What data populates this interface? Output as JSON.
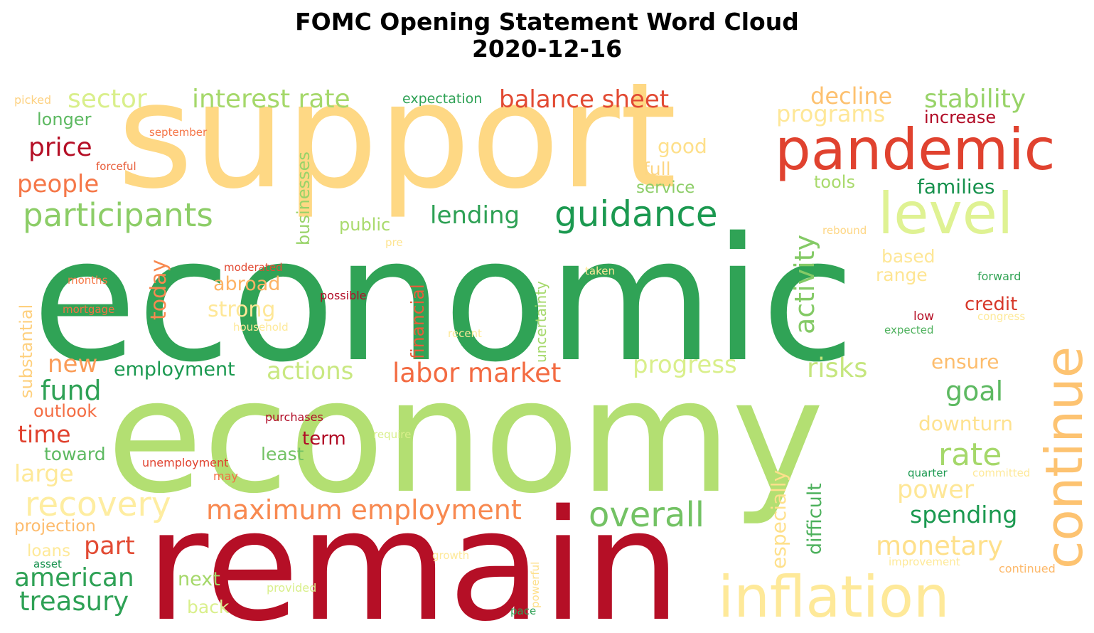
{
  "title_line1": "FOMC Opening Statement Word Cloud",
  "title_line2": "2020-12-16",
  "words": [
    {
      "text": "support",
      "color": "#fed884"
    },
    {
      "text": "economic",
      "color": "#30a356"
    },
    {
      "text": "economy",
      "color": "#b3df72"
    },
    {
      "text": "remain",
      "color": "#b50f26"
    },
    {
      "text": "pandemic",
      "color": "#e0422f"
    },
    {
      "text": "level",
      "color": "#dff293"
    },
    {
      "text": "inflation",
      "color": "#fee999"
    },
    {
      "text": "continue",
      "color": "#fdc371"
    },
    {
      "text": "participants",
      "color": "#8ccd67"
    },
    {
      "text": "guidance",
      "color": "#1b9950"
    },
    {
      "text": "interest rate",
      "color": "#a5d86a"
    },
    {
      "text": "sector",
      "color": "#d9ef8b"
    },
    {
      "text": "balance sheet",
      "color": "#e24a33"
    },
    {
      "text": "stability",
      "color": "#98d368"
    },
    {
      "text": "decline",
      "color": "#fdc170"
    },
    {
      "text": "programs",
      "color": "#fee797"
    },
    {
      "text": "increase",
      "color": "#b10b26"
    },
    {
      "text": "expectation",
      "color": "#2ea155"
    },
    {
      "text": "picked",
      "color": "#fdd181"
    },
    {
      "text": "longer",
      "color": "#5db961"
    },
    {
      "text": "september",
      "color": "#f57547"
    },
    {
      "text": "price",
      "color": "#b50f26"
    },
    {
      "text": "forceful",
      "color": "#e85d3a"
    },
    {
      "text": "people",
      "color": "#f57748"
    },
    {
      "text": "good",
      "color": "#fee08b"
    },
    {
      "text": "full",
      "color": "#fdd683"
    },
    {
      "text": "service",
      "color": "#8ccd67"
    },
    {
      "text": "tools",
      "color": "#a9da6c"
    },
    {
      "text": "families",
      "color": "#16914d"
    },
    {
      "text": "businesses",
      "color": "#98d368"
    },
    {
      "text": "lending",
      "color": "#2ea155"
    },
    {
      "text": "public",
      "color": "#a9da6c"
    },
    {
      "text": "activity",
      "color": "#84ca66"
    },
    {
      "text": "rebound",
      "color": "#fed683"
    },
    {
      "text": "pre",
      "color": "#fee491"
    },
    {
      "text": "based",
      "color": "#fee797"
    },
    {
      "text": "range",
      "color": "#fee593"
    },
    {
      "text": "forward",
      "color": "#33a456"
    },
    {
      "text": "substantial",
      "color": "#fed07e"
    },
    {
      "text": "today",
      "color": "#f88950"
    },
    {
      "text": "moderated",
      "color": "#e24a33"
    },
    {
      "text": "months",
      "color": "#f67a49"
    },
    {
      "text": "abroad",
      "color": "#fdb365"
    },
    {
      "text": "possible",
      "color": "#b10b26"
    },
    {
      "text": "mortgage",
      "color": "#f47044"
    },
    {
      "text": "strong",
      "color": "#fee797"
    },
    {
      "text": "household",
      "color": "#fee999"
    },
    {
      "text": "financial",
      "color": "#e85d3a"
    },
    {
      "text": "uncertainty",
      "color": "#a5d86a"
    },
    {
      "text": "taken",
      "color": "#fee999"
    },
    {
      "text": "recent",
      "color": "#fee999"
    },
    {
      "text": "credit",
      "color": "#d7382a"
    },
    {
      "text": "low",
      "color": "#b50f26"
    },
    {
      "text": "congress",
      "color": "#fee999"
    },
    {
      "text": "expected",
      "color": "#4eb15d"
    },
    {
      "text": "new",
      "color": "#fa9c58"
    },
    {
      "text": "employment",
      "color": "#1b9950"
    },
    {
      "text": "actions",
      "color": "#c9e881"
    },
    {
      "text": "labor market",
      "color": "#f36b42"
    },
    {
      "text": "progress",
      "color": "#d9ef8b"
    },
    {
      "text": "risks",
      "color": "#c5e67e"
    },
    {
      "text": "ensure",
      "color": "#fdbd6d"
    },
    {
      "text": "fund",
      "color": "#2ea155"
    },
    {
      "text": "goal",
      "color": "#5db961"
    },
    {
      "text": "outlook",
      "color": "#f46d43"
    },
    {
      "text": "purchases",
      "color": "#b10b26"
    },
    {
      "text": "time",
      "color": "#e0422f"
    },
    {
      "text": "term",
      "color": "#b10b26"
    },
    {
      "text": "require",
      "color": "#d9ef8b"
    },
    {
      "text": "downturn",
      "color": "#fee28f"
    },
    {
      "text": "toward",
      "color": "#5db961"
    },
    {
      "text": "least",
      "color": "#73c264"
    },
    {
      "text": "rate",
      "color": "#a5d86a"
    },
    {
      "text": "large",
      "color": "#fee999"
    },
    {
      "text": "unemployment",
      "color": "#e0422f"
    },
    {
      "text": "may",
      "color": "#f46d43"
    },
    {
      "text": "especially",
      "color": "#fee08b"
    },
    {
      "text": "quarter",
      "color": "#1b9950"
    },
    {
      "text": "committed",
      "color": "#fee999"
    },
    {
      "text": "recovery",
      "color": "#feeda1"
    },
    {
      "text": "maximum employment",
      "color": "#f88950"
    },
    {
      "text": "overall",
      "color": "#73c264"
    },
    {
      "text": "power",
      "color": "#fee797"
    },
    {
      "text": "spending",
      "color": "#1b9950"
    },
    {
      "text": "projection",
      "color": "#fdbb6c"
    },
    {
      "text": "difficult",
      "color": "#4eb15d"
    },
    {
      "text": "part",
      "color": "#e24a33"
    },
    {
      "text": "monetary",
      "color": "#fee08b"
    },
    {
      "text": "loans",
      "color": "#fee999"
    },
    {
      "text": "growth",
      "color": "#fee999"
    },
    {
      "text": "asset",
      "color": "#16914d"
    },
    {
      "text": "american",
      "color": "#2ea155"
    },
    {
      "text": "next",
      "color": "#a5d86a"
    },
    {
      "text": "powerful",
      "color": "#fee08b"
    },
    {
      "text": "improvement",
      "color": "#fee999"
    },
    {
      "text": "continued",
      "color": "#fdb869"
    },
    {
      "text": "provided",
      "color": "#d9ef8b"
    },
    {
      "text": "treasury",
      "color": "#2ea155"
    },
    {
      "text": "back",
      "color": "#d9ef8b"
    },
    {
      "text": "pace",
      "color": "#2ea155"
    }
  ]
}
